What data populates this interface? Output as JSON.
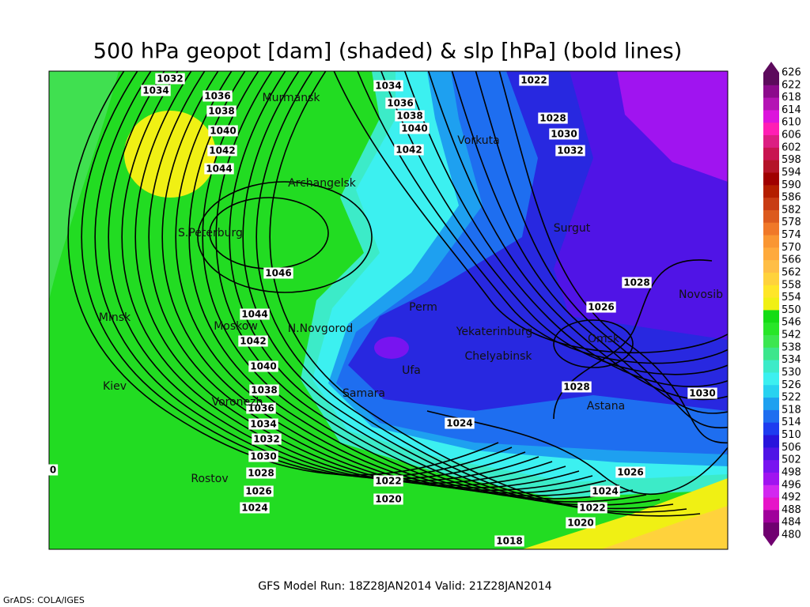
{
  "title": "500 hPa geopot [dam] (shaded) & slp [hPa] (bold lines)",
  "footer": "GFS Model Run: 18Z28JAN2014 Valid: 21Z28JAN2014",
  "credit": "GrADS: COLA/IGES",
  "cities": [
    "Murmansk",
    "Archangelsk",
    "Vorkuta",
    "S.Peterburg",
    "Surgut",
    "Novosib",
    "Perm",
    "Minsk",
    "Moskow",
    "N.Novgorod",
    "Yekaterinburg",
    "Omsk",
    "Chelyabinsk",
    "Ufa",
    "Kiev",
    "Voronezh",
    "Samara",
    "Astana",
    "Rostov"
  ],
  "isobar_labels": [
    1032,
    1034,
    1036,
    1038,
    1040,
    1042,
    1044,
    1046,
    1044,
    1042,
    1040,
    1038,
    1036,
    1034,
    1032,
    1030,
    1028,
    1026,
    1024,
    1034,
    1036,
    1038,
    1040,
    1042,
    1022,
    1028,
    1030,
    1032,
    1028,
    1026,
    1028,
    1030,
    1024,
    1026,
    1024,
    1022,
    1020,
    1018,
    1022,
    1020,
    0
  ],
  "colorbar": {
    "labels": [
      626,
      622,
      618,
      614,
      610,
      606,
      602,
      598,
      594,
      590,
      586,
      582,
      578,
      574,
      570,
      566,
      562,
      558,
      554,
      550,
      546,
      542,
      538,
      534,
      530,
      526,
      522,
      518,
      514,
      510,
      506,
      502,
      498,
      496,
      492,
      488,
      484,
      480
    ],
    "colors": [
      "#5c0a5c",
      "#8c0a8c",
      "#b414b4",
      "#dc14dc",
      "#ff1eb4",
      "#dc1e82",
      "#c81450",
      "#b41428",
      "#a00000",
      "#b41e00",
      "#c83c14",
      "#dc5a1e",
      "#f07828",
      "#fa9632",
      "#ffaa3c",
      "#ffbe46",
      "#ffd23c",
      "#ffe628",
      "#f0f014",
      "#14dc14",
      "#28e628",
      "#3ce650",
      "#3ce68c",
      "#3cebc8",
      "#3cf0f0",
      "#28d2f0",
      "#1ea0f0",
      "#1e6ef0",
      "#1e3cf0",
      "#2814dc",
      "#5014e6",
      "#7814f0",
      "#a014f0",
      "#d228f0",
      "#e614c8",
      "#a0009b",
      "#700070"
    ]
  }
}
